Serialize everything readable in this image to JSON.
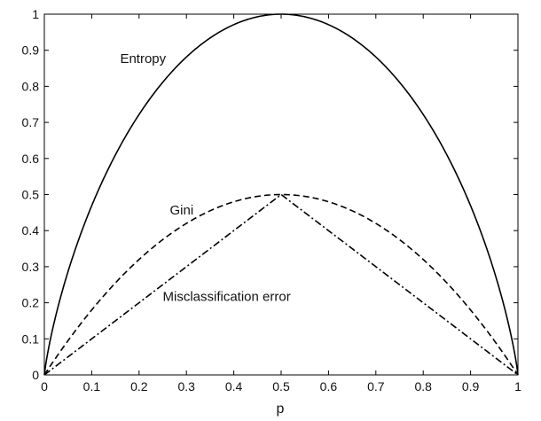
{
  "chart_data": {
    "type": "line",
    "title": "",
    "xlabel": "p",
    "ylabel": "",
    "xlim": [
      0,
      1
    ],
    "ylim": [
      0,
      1
    ],
    "grid": false,
    "legend": "none",
    "x_ticks": [
      0,
      0.1,
      0.2,
      0.3,
      0.4,
      0.5,
      0.6,
      0.7,
      0.8,
      0.9,
      1
    ],
    "x_tick_labels": [
      "0",
      "0.1",
      "0.2",
      "0.3",
      "0.4",
      "0.5",
      "0.6",
      "0.7",
      "0.8",
      "0.9",
      "1"
    ],
    "y_ticks": [
      0,
      0.1,
      0.2,
      0.3,
      0.4,
      0.5,
      0.6,
      0.7,
      0.8,
      0.9,
      1
    ],
    "y_tick_labels": [
      "0",
      "0.1",
      "0.2",
      "0.3",
      "0.4",
      "0.5",
      "0.6",
      "0.7",
      "0.8",
      "0.9",
      "1"
    ],
    "x": [
      0,
      0.05,
      0.1,
      0.15,
      0.2,
      0.25,
      0.3,
      0.35,
      0.4,
      0.45,
      0.5,
      0.55,
      0.6,
      0.65,
      0.7,
      0.75,
      0.8,
      0.85,
      0.9,
      0.95,
      1
    ],
    "series": [
      {
        "key": "entropy",
        "values": [
          0,
          0.286,
          0.469,
          0.61,
          0.722,
          0.811,
          0.881,
          0.934,
          0.971,
          0.993,
          1.0,
          0.993,
          0.971,
          0.934,
          0.881,
          0.811,
          0.722,
          0.61,
          0.469,
          0.286,
          0
        ],
        "line_style": "solid",
        "color": "#000000"
      },
      {
        "key": "gini",
        "values": [
          0,
          0.095,
          0.18,
          0.255,
          0.32,
          0.375,
          0.42,
          0.455,
          0.48,
          0.495,
          0.5,
          0.495,
          0.48,
          0.455,
          0.42,
          0.375,
          0.32,
          0.255,
          0.18,
          0.095,
          0
        ],
        "line_style": "dashed",
        "color": "#000000"
      },
      {
        "key": "misclassification",
        "values": [
          0,
          0.05,
          0.1,
          0.15,
          0.2,
          0.25,
          0.3,
          0.35,
          0.4,
          0.45,
          0.5,
          0.45,
          0.4,
          0.35,
          0.3,
          0.25,
          0.2,
          0.15,
          0.1,
          0.05,
          0
        ],
        "line_style": "dash-dot",
        "color": "#000000"
      }
    ],
    "annotations": [
      {
        "key": "entropy",
        "text": "Entropy",
        "x": 0.16,
        "y": 0.865
      },
      {
        "key": "gini",
        "text": "Gini",
        "x": 0.265,
        "y": 0.445
      },
      {
        "key": "misclassification",
        "text": "Misclassification error",
        "x": 0.25,
        "y": 0.205
      }
    ]
  }
}
